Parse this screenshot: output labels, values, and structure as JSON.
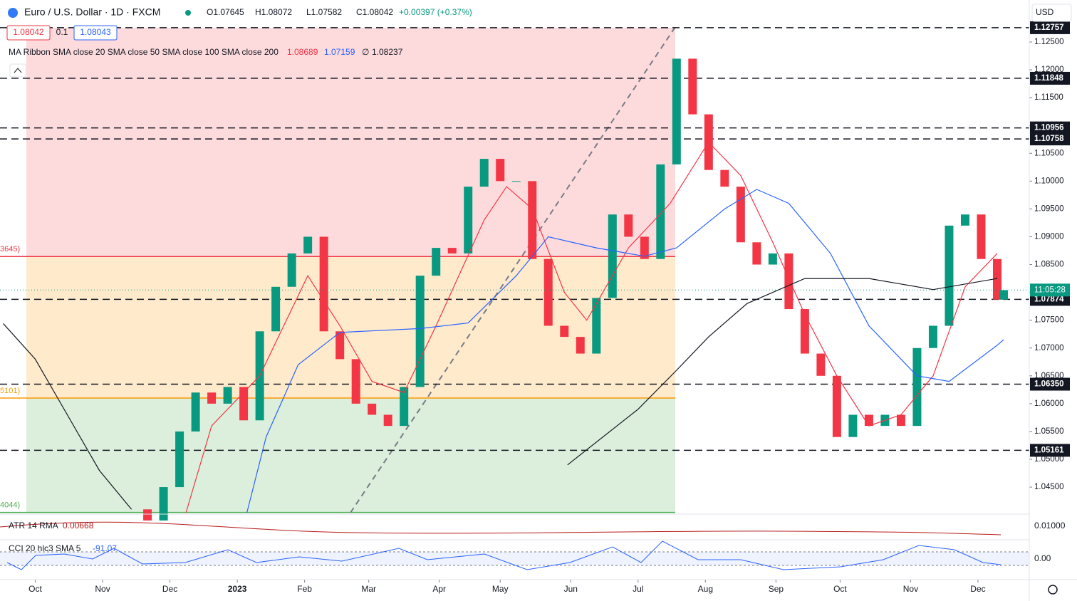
{
  "chart_data": {
    "type": "candle-line",
    "title": "Euro / U.S. Dollar · 1D · FXCM",
    "ohlc": {
      "open": "O1.07645",
      "high": "H1.08072",
      "low": "L1.07582",
      "close": "C1.08042",
      "change": "+0.00397 (+0.37%)"
    },
    "quote_boxes": [
      "1.08042",
      "0.1",
      "1.08043"
    ],
    "indicator": {
      "label": "MA Ribbon SMA close 20 SMA close 50 SMA close 100 SMA close 200",
      "values": [
        {
          "label": "1.08689",
          "color": "#f23645"
        },
        {
          "label": "1.07159",
          "color": "#2962ff"
        },
        {
          "label": "∅",
          "color": "#131722"
        },
        {
          "label": "1.08237",
          "color": "#131722"
        }
      ]
    },
    "currency": "USD",
    "time_label": "11:05:28",
    "last_price": 1.08042,
    "xlim": [
      -11,
      310
    ],
    "ylim": [
      1.0404,
      1.13255
    ],
    "xticks": [
      {
        "value": 0,
        "label": "Oct"
      },
      {
        "value": 21,
        "label": "Nov"
      },
      {
        "value": 42,
        "label": "Dec"
      },
      {
        "value": 63,
        "label": "2023"
      },
      {
        "value": 84,
        "label": "Feb"
      },
      {
        "value": 104,
        "label": "Mar"
      },
      {
        "value": 126,
        "label": "Apr"
      },
      {
        "value": 145,
        "label": "May"
      },
      {
        "value": 167,
        "label": "Jun"
      },
      {
        "value": 188,
        "label": "Jul"
      },
      {
        "value": 209,
        "label": "Aug"
      },
      {
        "value": 231,
        "label": "Sep"
      },
      {
        "value": 251,
        "label": "Oct"
      },
      {
        "value": 273,
        "label": "Nov"
      },
      {
        "value": 294,
        "label": "Dec"
      }
    ],
    "yticks": [
      {
        "value": 1.045,
        "label": "1.04500"
      },
      {
        "value": 1.05,
        "label": "1.05000"
      },
      {
        "value": 1.055,
        "label": "1.05500"
      },
      {
        "value": 1.06,
        "label": "1.06000"
      },
      {
        "value": 1.065,
        "label": "1.06500"
      },
      {
        "value": 1.07,
        "label": "1.07000"
      },
      {
        "value": 1.075,
        "label": "1.07500"
      },
      {
        "value": 1.08,
        "label": "1.08000"
      },
      {
        "value": 1.085,
        "label": "1.08500"
      },
      {
        "value": 1.09,
        "label": "1.09000"
      },
      {
        "value": 1.095,
        "label": "1.09500"
      },
      {
        "value": 1.1,
        "label": "1.10000"
      },
      {
        "value": 1.105,
        "label": "1.10500"
      },
      {
        "value": 1.11,
        "label": "1.11000"
      },
      {
        "value": 1.115,
        "label": "1.11500"
      },
      {
        "value": 1.12,
        "label": "1.12000"
      },
      {
        "value": 1.125,
        "label": "1.12500"
      }
    ],
    "levels": [
      1.12757,
      1.11848,
      1.10956,
      1.10758,
      1.07874,
      {
        "value": 1.0635,
        "label": "1.06350"
      },
      1.05161
    ],
    "fib_levels": [
      {
        "value": 1.08645,
        "label": "3645)",
        "color": "#f23645"
      },
      {
        "value": 1.06101,
        "label": "5101)",
        "color": "#ff9800"
      },
      {
        "value": 1.04044,
        "label": "4044)",
        "color": "#4caf50"
      }
    ],
    "series": [
      {
        "name": "EUR/USD",
        "color": "#089981",
        "down_color": "#f23645",
        "x": [
          30,
          35,
          40,
          45,
          50,
          55,
          60,
          65,
          70,
          75,
          80,
          85,
          90,
          95,
          100,
          105,
          110,
          115,
          120,
          125,
          130,
          135,
          140,
          145,
          150,
          155,
          160,
          165,
          170,
          175,
          180,
          185,
          190,
          195,
          200,
          205,
          210,
          215,
          220,
          225,
          230,
          235,
          240,
          245,
          250,
          255,
          260,
          265,
          270,
          275,
          280,
          285,
          290,
          295,
          300,
          302
        ],
        "values": [
          1.041,
          1.039,
          1.045,
          1.055,
          1.062,
          1.06,
          1.063,
          1.057,
          1.073,
          1.081,
          1.087,
          1.09,
          1.073,
          1.068,
          1.06,
          1.058,
          1.056,
          1.063,
          1.083,
          1.088,
          1.087,
          1.099,
          1.104,
          1.1,
          1.1,
          1.086,
          1.074,
          1.072,
          1.069,
          1.079,
          1.094,
          1.09,
          1.086,
          1.103,
          1.122,
          1.112,
          1.102,
          1.099,
          1.089,
          1.085,
          1.087,
          1.077,
          1.069,
          1.065,
          1.054,
          1.058,
          1.056,
          1.058,
          1.056,
          1.07,
          1.074,
          1.092,
          1.094,
          1.086,
          1.0787,
          1.0804
        ]
      },
      {
        "name": "SMA 20",
        "color": "#f23645",
        "x": [
          47,
          55,
          70,
          85,
          95,
          105,
          115,
          125,
          140,
          147,
          155,
          165,
          172,
          185,
          198,
          210,
          220,
          230,
          240,
          250,
          260,
          270,
          280,
          290,
          300
        ],
        "values": [
          1.0404,
          1.056,
          1.065,
          1.083,
          1.074,
          1.064,
          1.062,
          1.074,
          1.093,
          1.099,
          1.095,
          1.08,
          1.075,
          1.088,
          1.096,
          1.107,
          1.101,
          1.089,
          1.076,
          1.065,
          1.056,
          1.058,
          1.065,
          1.081,
          1.087
        ]
      },
      {
        "name": "SMA 50",
        "color": "#2962ff",
        "x": [
          66,
          72,
          82,
          95,
          120,
          135,
          150,
          160,
          175,
          190,
          200,
          215,
          225,
          235,
          248,
          260,
          275,
          285,
          300,
          302
        ],
        "values": [
          1.0404,
          1.054,
          1.067,
          1.0728,
          1.0735,
          1.0745,
          1.083,
          1.09,
          1.088,
          1.0865,
          1.088,
          1.095,
          1.0985,
          1.096,
          1.087,
          1.074,
          1.065,
          1.064,
          1.0705,
          1.0715
        ]
      },
      {
        "name": "SMA 200",
        "color": "#131722",
        "x": [
          -10,
          0,
          10,
          20,
          30,
          142,
          166,
          188,
          200,
          210,
          222,
          240,
          260,
          280,
          300
        ],
        "values": [
          1.0744,
          1.068,
          1.058,
          1.048,
          1.041,
          null,
          1.049,
          1.059,
          1.066,
          1.072,
          1.078,
          1.0825,
          1.0825,
          1.0805,
          1.0825
        ]
      }
    ],
    "atr": {
      "label": "ATR 14 RMA",
      "value_label": "0.00668",
      "axis_label": "0.01000"
    },
    "cci": {
      "label": "CCI 20 hlc3 SMA 5",
      "value_label": "-91.07",
      "axis_label": "0.00"
    }
  }
}
